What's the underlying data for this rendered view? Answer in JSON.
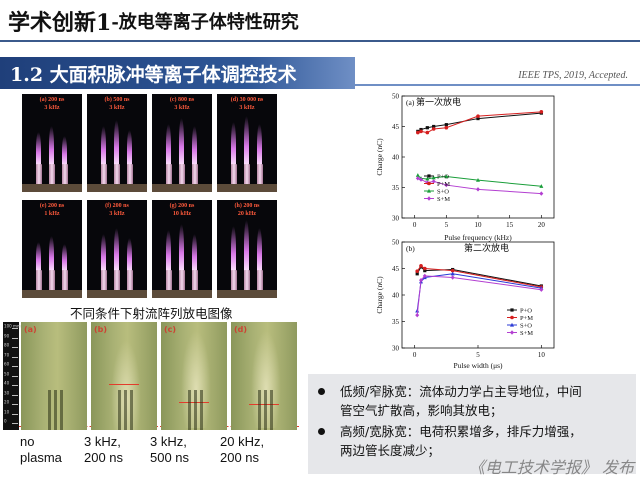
{
  "title": {
    "main": "学术创新1",
    "subtitle": "-放电等离子体特性研究"
  },
  "section": {
    "heading": "1.2  大面积脉冲等离子体调控技术",
    "citation": "IEEE TPS, 2019, Accepted."
  },
  "photo_grid": {
    "caption": "不同条件下射流阵列放电图像",
    "panels": [
      {
        "label": "(a) 200 ns\n3 kHz"
      },
      {
        "label": "(b) 500 ns\n3 kHz"
      },
      {
        "label": "(c) 800 ns\n3 kHz"
      },
      {
        "label": "(d) 30 000 ns\n3 kHz"
      },
      {
        "label": "(e) 200 ns\n1 kHz"
      },
      {
        "label": "(f) 200 ns\n3 kHz"
      },
      {
        "label": "(g) 200 ns\n10 kHz"
      },
      {
        "label": "(h)  200 ns\n20 kHz"
      }
    ]
  },
  "schlieren": {
    "ruler_ticks": [
      "100 mm",
      "90",
      "80",
      "70",
      "60",
      "50",
      "40",
      "30",
      "20",
      "10",
      "0"
    ],
    "panels": [
      {
        "label": "(a)",
        "condition": "no\nplasma"
      },
      {
        "label": "(b)",
        "condition": "3 kHz,\n200 ns"
      },
      {
        "label": "(c)",
        "condition": "3 kHz,\n500 ns"
      },
      {
        "label": "(d)",
        "condition": "20 kHz,\n200 ns"
      }
    ]
  },
  "chart_data": [
    {
      "type": "line",
      "panel_label": "(a)",
      "title": "第一次放电",
      "xlabel": "Pulse frequency (kHz)",
      "ylabel": "Charge (nC)",
      "xlim": [
        -2,
        22
      ],
      "ylim": [
        30,
        50
      ],
      "xticks": [
        0,
        5,
        10,
        15,
        20
      ],
      "yticks": [
        30,
        35,
        40,
        45,
        50
      ],
      "legend_position": "bottom-left",
      "series": [
        {
          "name": "P+O",
          "color": "#111111",
          "marker": "square",
          "x": [
            0.5,
            1,
            2,
            3,
            5,
            10,
            20
          ],
          "y": [
            44.2,
            44.5,
            44.8,
            45.0,
            45.3,
            46.3,
            47.2
          ]
        },
        {
          "name": "P+M",
          "color": "#d61f1f",
          "marker": "circle",
          "x": [
            0.5,
            1,
            2,
            3,
            5,
            10,
            20
          ],
          "y": [
            44.0,
            44.2,
            44.0,
            44.6,
            44.8,
            46.7,
            47.4
          ]
        },
        {
          "name": "S+O",
          "color": "#1a9e3a",
          "marker": "triangle",
          "x": [
            0.5,
            1,
            2,
            3,
            5,
            10,
            20
          ],
          "y": [
            37.0,
            36.5,
            36.4,
            36.6,
            36.8,
            36.2,
            35.2
          ]
        },
        {
          "name": "S+M",
          "color": "#b33fd1",
          "marker": "diamond",
          "x": [
            0.5,
            1,
            2,
            3,
            5,
            10,
            20
          ],
          "y": [
            36.5,
            36.3,
            35.8,
            36.0,
            35.4,
            34.7,
            34.0
          ]
        }
      ]
    },
    {
      "type": "line",
      "panel_label": "(b)",
      "title": "第二次放电",
      "xlabel": "Pulse width (μs)",
      "ylabel": "Charge (nC)",
      "xlim": [
        -1,
        11
      ],
      "ylim": [
        30,
        50
      ],
      "xticks": [
        0,
        5,
        10
      ],
      "yticks": [
        30,
        35,
        40,
        45,
        50
      ],
      "legend_position": "bottom-right",
      "series": [
        {
          "name": "P+O",
          "color": "#111111",
          "marker": "square",
          "x": [
            0.2,
            0.5,
            0.8,
            3,
            10
          ],
          "y": [
            44.0,
            45.3,
            44.6,
            44.8,
            41.7
          ]
        },
        {
          "name": "P+M",
          "color": "#d61f1f",
          "marker": "circle",
          "x": [
            0.2,
            0.5,
            0.8,
            3,
            10
          ],
          "y": [
            44.5,
            45.5,
            45.0,
            44.6,
            41.5
          ]
        },
        {
          "name": "S+O",
          "color": "#2b3bd6",
          "marker": "triangle",
          "x": [
            0.2,
            0.5,
            0.8,
            3,
            10
          ],
          "y": [
            37.0,
            42.5,
            43.3,
            44.0,
            41.3
          ]
        },
        {
          "name": "S+M",
          "color": "#b33fd1",
          "marker": "diamond",
          "x": [
            0.2,
            0.5,
            0.8,
            3,
            10
          ],
          "y": [
            36.2,
            42.8,
            43.6,
            43.3,
            41.0
          ]
        }
      ]
    }
  ],
  "bullets": [
    {
      "line1": "低频/窄脉宽：流体动力学占主导地位，中间",
      "line2": "管空气扩散高，影响其放电；"
    },
    {
      "line1": "高频/宽脉宽：电荷积累增多，排斥力增强，",
      "line2": "两边管长度减少；"
    }
  ],
  "watermark": "《电工技术学报》 发布",
  "colors": {
    "banner_blue": "#2f5797",
    "title_rule": "#3b5a8c",
    "bullet_box": "#e6e7ea"
  }
}
